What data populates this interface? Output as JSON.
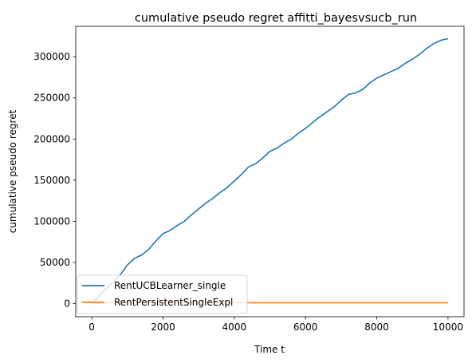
{
  "chart_data": {
    "type": "line",
    "title": "cumulative pseudo regret affitti_bayesvsucb_run",
    "xlabel": "Time t",
    "ylabel": "cumulative pseudo regret",
    "xlim": [
      -450,
      10450
    ],
    "ylim": [
      -16000,
      337000
    ],
    "xticks": [
      0,
      2000,
      4000,
      6000,
      8000,
      10000
    ],
    "xtick_labels": [
      "0",
      "2000",
      "4000",
      "6000",
      "8000",
      "10000"
    ],
    "yticks": [
      0,
      50000,
      100000,
      150000,
      200000,
      250000,
      300000
    ],
    "ytick_labels": [
      "0",
      "50000",
      "100000",
      "150000",
      "200000",
      "250000",
      "300000"
    ],
    "grid": false,
    "legend_position": "lower-left",
    "series": [
      {
        "name": "RentUCBLearner_single",
        "color": "#1f77b4",
        "x": [
          0,
          200,
          400,
          600,
          800,
          1000,
          1200,
          1400,
          1600,
          1800,
          2000,
          2200,
          2400,
          2600,
          2800,
          3000,
          3200,
          3400,
          3600,
          3800,
          4000,
          4200,
          4400,
          4600,
          4800,
          5000,
          5200,
          5400,
          5600,
          5800,
          6000,
          6200,
          6400,
          6600,
          6800,
          7000,
          7200,
          7400,
          7600,
          7800,
          8000,
          8200,
          8400,
          8600,
          8800,
          9000,
          9200,
          9400,
          9600,
          9800,
          10000
        ],
        "y": [
          0,
          9000,
          18000,
          26000,
          35000,
          47000,
          55000,
          59000,
          66000,
          76000,
          85000,
          89000,
          95000,
          100000,
          108000,
          115000,
          122000,
          128000,
          135000,
          141000,
          149000,
          157000,
          166000,
          170000,
          177000,
          185000,
          189000,
          195000,
          200000,
          207000,
          213000,
          220000,
          227000,
          233000,
          239000,
          247000,
          254000,
          256000,
          260000,
          268000,
          274000,
          278000,
          282000,
          286000,
          292000,
          297000,
          303000,
          310000,
          316000,
          320000,
          322000
        ]
      },
      {
        "name": "RentPersistentSingleExpl",
        "color": "#ff7f0e",
        "x": [
          0,
          500,
          10000
        ],
        "y": [
          0,
          1000,
          1000
        ]
      }
    ]
  }
}
